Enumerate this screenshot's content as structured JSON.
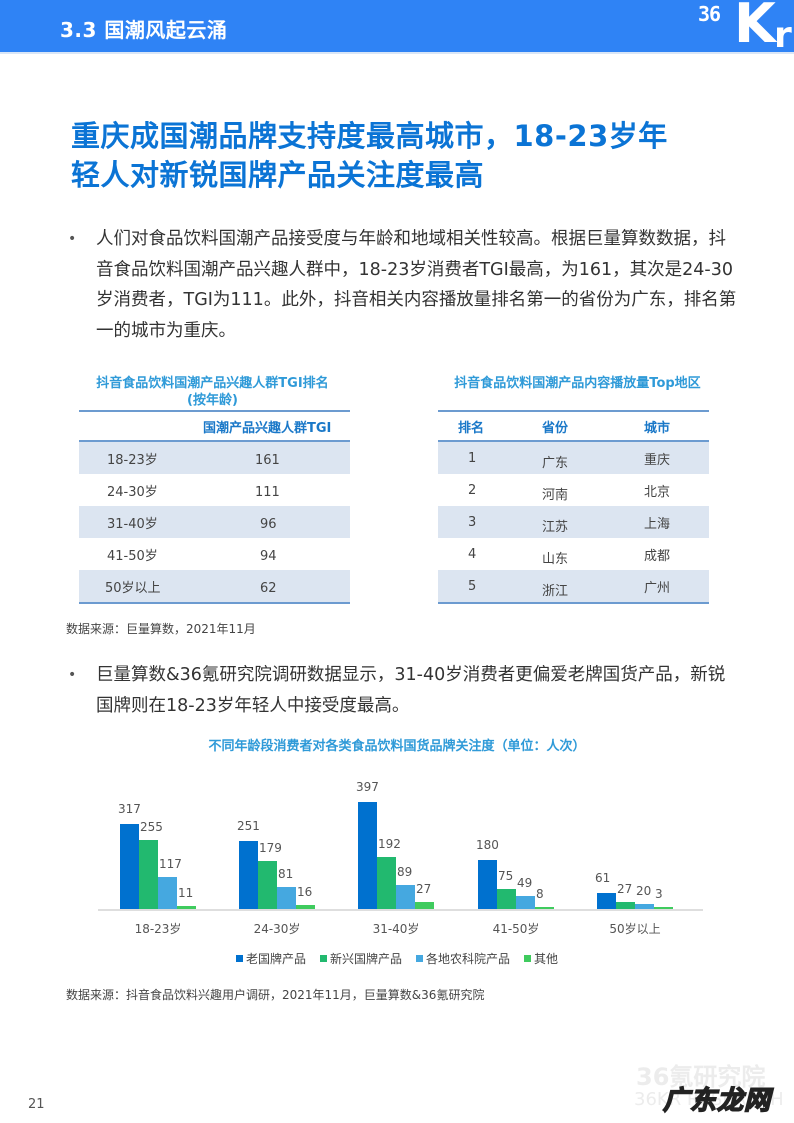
{
  "header": {
    "section_title": "3.3 国潮风起云涌",
    "logo_36": "36",
    "logo_k": "K",
    "logo_r": "r"
  },
  "headline": {
    "line1": "重庆成国潮品牌支持度最高城市，18-23岁年",
    "line2": "轻人对新锐国牌产品关注度最高"
  },
  "bullets": [
    {
      "symbol": "•",
      "text": "人们对食品饮料国潮产品接受度与年龄和地域相关性较高。根据巨量算数数据，抖音食品饮料国潮产品兴趣人群中，18-23岁消费者TGI最高，为161，其次是24-30岁消费者，TGI为111。此外，抖音相关内容播放量排名第一的省份为广东，排名第一的城市为重庆。"
    },
    {
      "symbol": "•",
      "text": "巨量算数&36氪研究院调研数据显示，31-40岁消费者更偏爱老牌国货产品，新锐国牌则在18-23岁年轻人中接受度最高。"
    }
  ],
  "tgi_table": {
    "title_line1": "抖音食品饮料国潮产品兴趣人群TGI排名",
    "title_line2": "(按年龄)",
    "header": [
      "",
      "国潮产品兴趣人群TGI"
    ],
    "rows": [
      [
        "18-23岁",
        "161"
      ],
      [
        "24-30岁",
        "111"
      ],
      [
        "31-40岁",
        "96"
      ],
      [
        "41-50岁",
        "94"
      ],
      [
        "50岁以上",
        "62"
      ]
    ]
  },
  "region_table": {
    "title": "抖音食品饮料国潮产品内容播放量Top地区",
    "header": [
      "排名",
      "省份",
      "城市"
    ],
    "rows": [
      [
        "1",
        "广东",
        "重庆"
      ],
      [
        "2",
        "河南",
        "北京"
      ],
      [
        "3",
        "江苏",
        "上海"
      ],
      [
        "4",
        "山东",
        "成都"
      ],
      [
        "5",
        "浙江",
        "广州"
      ]
    ]
  },
  "source1": "数据来源：巨量算数，2021年11月",
  "chart_data": {
    "type": "bar",
    "title": "不同年龄段消费者对各类食品饮料国货品牌关注度（单位：人次）",
    "categories": [
      "18-23岁",
      "24-30岁",
      "31-40岁",
      "41-50岁",
      "50岁以上"
    ],
    "series": [
      {
        "name": "老国牌产品",
        "color": "#0071cf",
        "values": [
          317,
          251,
          397,
          180,
          61
        ]
      },
      {
        "name": "新兴国牌产品",
        "color": "#22b96f",
        "values": [
          255,
          179,
          192,
          75,
          27
        ]
      },
      {
        "name": "各地农科院产品",
        "color": "#45a8e0",
        "values": [
          117,
          81,
          89,
          49,
          20
        ]
      },
      {
        "name": "其他",
        "color": "#3fcb5e",
        "values": [
          11,
          16,
          27,
          8,
          3
        ]
      }
    ],
    "xlabel": "",
    "ylabel": "",
    "ylim": [
      0,
      400
    ],
    "grid": false,
    "legend_position": "bottom",
    "data_labels": true
  },
  "source2": "数据来源：抖音食品饮料兴趣用户调研，2021年11月，巨量算数&36氪研究院",
  "footer": {
    "page_number": "21",
    "watermark_cn": "36氪研究院",
    "watermark_en": "36KR RESEARCH",
    "overlay_watermark": "广东龙网"
  }
}
